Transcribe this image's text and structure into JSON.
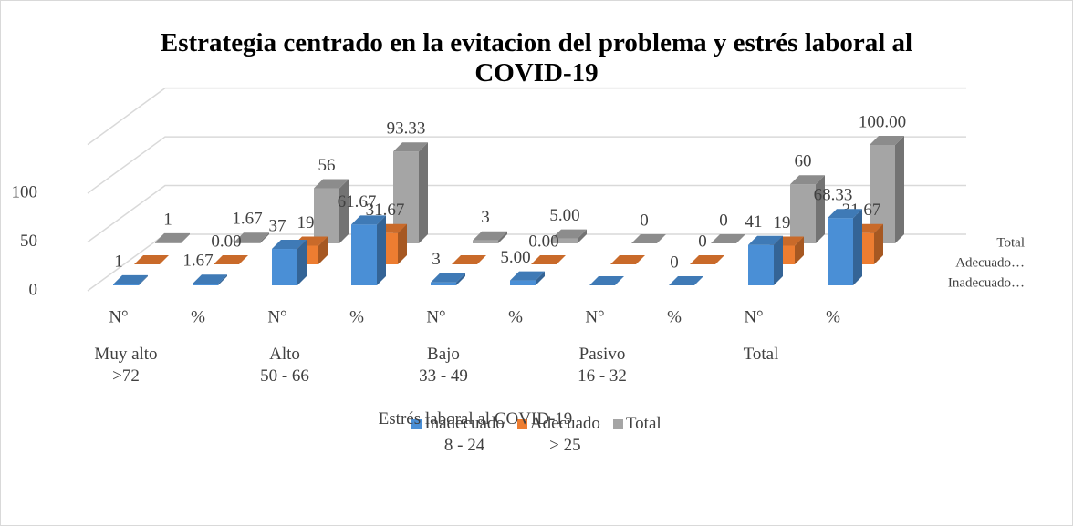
{
  "chart_data": {
    "type": "bar3d",
    "title": "Estrategia centrado en la evitacion del problema y estrés laboral al COVID-19",
    "x_label": "Estrés laboral al COVID-19",
    "categories": [
      "N°",
      "%",
      "N°",
      "%",
      "N°",
      "%",
      "N°",
      "%",
      "N°",
      "%"
    ],
    "groups": [
      "Muy alto\n>72",
      "Alto\n50 - 66",
      "Bajo\n33 - 49",
      "Pasivo\n16 - 32",
      "Total"
    ],
    "depth_labels": [
      "Inadecuado…",
      "Adecuado…",
      "Total"
    ],
    "series": [
      {
        "name": "Inadecuado\n8 - 24",
        "color": "#4a8fd6",
        "values": [
          1,
          1.67,
          37,
          61.67,
          3,
          5,
          0,
          0,
          41,
          68.33
        ],
        "value_labels": [
          "1",
          "1.67",
          "37",
          "61.67",
          "3",
          "5.00",
          null,
          "0",
          "41",
          "68.33"
        ]
      },
      {
        "name": "Adecuado\n> 25",
        "color": "#ed7d31",
        "values": [
          0,
          0,
          19,
          31.67,
          0,
          0,
          0,
          0,
          19,
          31.67
        ],
        "value_labels": [
          null,
          "0.00",
          "19",
          "31.67",
          null,
          "0.00",
          null,
          "0",
          "19",
          "31.67"
        ]
      },
      {
        "name": "Total",
        "color": "#a5a5a5",
        "values": [
          1,
          1.67,
          56,
          93.33,
          3,
          5,
          0,
          0,
          60,
          100
        ],
        "value_labels": [
          "1",
          "1.67",
          "56",
          "93.33",
          "3",
          "5.00",
          "0",
          "0",
          "60",
          "100.00"
        ]
      }
    ],
    "ylim": [
      0,
      150
    ],
    "yticks": [
      0,
      50,
      100
    ],
    "grid": true
  }
}
